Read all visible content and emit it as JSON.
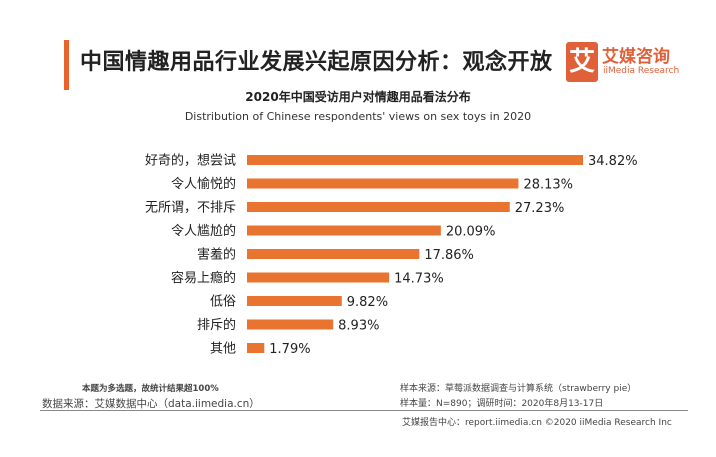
{
  "header": {
    "title": "中国情趣用品行业发展兴起原因分析：观念开放",
    "logo_mark": "艾",
    "logo_cn": "艾媒咨询",
    "logo_en": "iiMedia Research"
  },
  "chart_data": {
    "type": "bar",
    "orientation": "horizontal",
    "title": "2020年中国受访用户对情趣用品看法分布",
    "subtitle": "Distribution of Chinese respondents' views on sex toys in 2020",
    "categories": [
      "好奇的，想尝试",
      "令人愉悦的",
      "无所谓，不排斥",
      "令人尴尬的",
      "害羞的",
      "容易上瘾的",
      "低俗",
      "排斥的",
      "其他"
    ],
    "values": [
      34.82,
      28.13,
      27.23,
      20.09,
      17.86,
      14.73,
      9.82,
      8.93,
      1.79
    ],
    "labels": [
      "34.82%",
      "28.13%",
      "27.23%",
      "20.09%",
      "17.86%",
      "14.73%",
      "9.82%",
      "8.93%",
      "1.79%"
    ],
    "unit": "%",
    "bar_color": "#e8742f",
    "xlim": [
      0,
      40
    ]
  },
  "footer": {
    "note": "本题为多选题，故统计结果超100%",
    "source": "数据来源：艾媒数据中心（data.iimedia.cn）",
    "sample_source": "样本来源：草莓派数据调查与计算系统（strawberry pie）",
    "sample_size": "样本量：N=890；调研时间：2020年8月13-17日",
    "report": "艾媒报告中心：report.iimedia.cn  ©2020  iiMedia Research  Inc"
  }
}
